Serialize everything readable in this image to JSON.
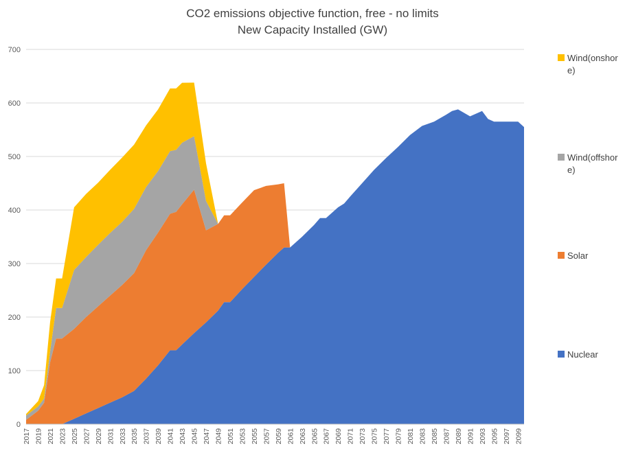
{
  "chart_data": {
    "type": "area",
    "stacked": true,
    "title": "CO2 emissions objective function, free - no limits",
    "subtitle": "New Capacity Installed (GW)",
    "ylim": [
      0,
      700
    ],
    "yticks": [
      0,
      100,
      200,
      300,
      400,
      500,
      600,
      700
    ],
    "xlim": [
      2017,
      2100
    ],
    "xticks": [
      2017,
      2019,
      2021,
      2023,
      2025,
      2027,
      2029,
      2031,
      2033,
      2035,
      2037,
      2039,
      2041,
      2043,
      2045,
      2047,
      2049,
      2051,
      2053,
      2055,
      2057,
      2059,
      2061,
      2063,
      2065,
      2067,
      2069,
      2071,
      2073,
      2075,
      2077,
      2079,
      2081,
      2083,
      2085,
      2087,
      2089,
      2091,
      2093,
      2095,
      2097,
      2099
    ],
    "grid": true,
    "legend_position": "right",
    "series": [
      {
        "name": "Nuclear",
        "color": "#4472C4",
        "points": [
          [
            2017,
            0
          ],
          [
            2023,
            0
          ],
          [
            2025,
            10
          ],
          [
            2027,
            20
          ],
          [
            2029,
            30
          ],
          [
            2031,
            40
          ],
          [
            2033,
            50
          ],
          [
            2035,
            62
          ],
          [
            2037,
            85
          ],
          [
            2039,
            110
          ],
          [
            2041,
            138
          ],
          [
            2042,
            138
          ],
          [
            2045,
            170
          ],
          [
            2047,
            190
          ],
          [
            2049,
            212
          ],
          [
            2050,
            228
          ],
          [
            2051,
            228
          ],
          [
            2053,
            252
          ],
          [
            2055,
            275
          ],
          [
            2057,
            298
          ],
          [
            2059,
            320
          ],
          [
            2060,
            330
          ],
          [
            2061,
            330
          ],
          [
            2063,
            350
          ],
          [
            2065,
            372
          ],
          [
            2066,
            385
          ],
          [
            2067,
            385
          ],
          [
            2069,
            405
          ],
          [
            2070,
            412
          ],
          [
            2071,
            425
          ],
          [
            2073,
            450
          ],
          [
            2075,
            475
          ],
          [
            2077,
            497
          ],
          [
            2079,
            518
          ],
          [
            2081,
            540
          ],
          [
            2083,
            557
          ],
          [
            2085,
            565
          ],
          [
            2087,
            578
          ],
          [
            2088,
            585
          ],
          [
            2089,
            588
          ],
          [
            2091,
            575
          ],
          [
            2093,
            585
          ],
          [
            2094,
            570
          ],
          [
            2095,
            565
          ],
          [
            2099,
            565
          ],
          [
            2100,
            555
          ]
        ]
      },
      {
        "name": "Solar",
        "color": "#ED7D31",
        "points": [
          [
            2017,
            8
          ],
          [
            2019,
            25
          ],
          [
            2020,
            40
          ],
          [
            2021,
            115
          ],
          [
            2022,
            160
          ],
          [
            2023,
            160
          ],
          [
            2025,
            168
          ],
          [
            2027,
            180
          ],
          [
            2029,
            190
          ],
          [
            2031,
            200
          ],
          [
            2033,
            210
          ],
          [
            2035,
            220
          ],
          [
            2037,
            240
          ],
          [
            2039,
            248
          ],
          [
            2041,
            255
          ],
          [
            2043,
            262
          ],
          [
            2045,
            268
          ],
          [
            2047,
            172
          ],
          [
            2049,
            162
          ],
          [
            2050,
            162
          ],
          [
            2051,
            162
          ],
          [
            2053,
            162
          ],
          [
            2055,
            162
          ],
          [
            2057,
            147
          ],
          [
            2059,
            128
          ],
          [
            2060,
            120
          ],
          [
            2061,
            0
          ],
          [
            2062,
            0
          ]
        ]
      },
      {
        "name": "Wind(offshore)",
        "color": "#A5A5A5",
        "points": [
          [
            2017,
            8
          ],
          [
            2019,
            8
          ],
          [
            2020,
            8
          ],
          [
            2021,
            20
          ],
          [
            2022,
            57
          ],
          [
            2023,
            57
          ],
          [
            2025,
            110
          ],
          [
            2027,
            112
          ],
          [
            2029,
            115
          ],
          [
            2031,
            117
          ],
          [
            2033,
            118
          ],
          [
            2035,
            120
          ],
          [
            2037,
            118
          ],
          [
            2039,
            115
          ],
          [
            2041,
            117
          ],
          [
            2043,
            115
          ],
          [
            2045,
            100
          ],
          [
            2047,
            55
          ],
          [
            2049,
            0
          ],
          [
            2050,
            0
          ]
        ]
      },
      {
        "name": "Wind(onshore)",
        "color": "#FFC000",
        "points": [
          [
            2017,
            3
          ],
          [
            2019,
            10
          ],
          [
            2020,
            25
          ],
          [
            2021,
            55
          ],
          [
            2022,
            55
          ],
          [
            2023,
            55
          ],
          [
            2025,
            117
          ],
          [
            2027,
            118
          ],
          [
            2029,
            116
          ],
          [
            2031,
            118
          ],
          [
            2033,
            120
          ],
          [
            2035,
            120
          ],
          [
            2037,
            115
          ],
          [
            2039,
            115
          ],
          [
            2041,
            117
          ],
          [
            2043,
            112
          ],
          [
            2045,
            100
          ],
          [
            2047,
            70
          ],
          [
            2049,
            0
          ],
          [
            2050,
            0
          ]
        ]
      }
    ]
  },
  "legend": [
    {
      "label": "Wind(onshore)",
      "color": "#FFC000"
    },
    {
      "label": "Wind(offshore)",
      "color": "#A5A5A5"
    },
    {
      "label": "Solar",
      "color": "#ED7D31"
    },
    {
      "label": "Nuclear",
      "color": "#4472C4"
    }
  ]
}
